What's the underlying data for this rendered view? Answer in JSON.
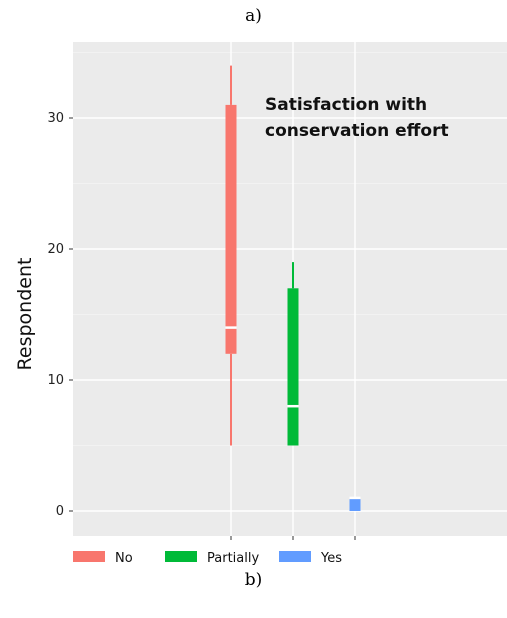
{
  "captions": {
    "top": "a)",
    "bottom": "b)"
  },
  "chart_data": {
    "type": "boxplot",
    "title_lines": [
      "Satisfaction with",
      "conservation effort"
    ],
    "ylabel": "Respondent",
    "xlabel": "",
    "ylim": [
      -1.5,
      36
    ],
    "yticks": [
      0,
      10,
      20,
      30
    ],
    "grid": true,
    "legend_position": "bottom-left",
    "series": [
      {
        "name": "No",
        "color": "#F8766D",
        "min": 5,
        "q1": 12,
        "median": 14,
        "q3": 31,
        "max": 34
      },
      {
        "name": "Partially",
        "color": "#00BA38",
        "min": 5,
        "q1": 5,
        "median": 8,
        "q3": 17,
        "max": 19
      },
      {
        "name": "Yes",
        "color": "#619CFF",
        "min": 0,
        "q1": 0,
        "median": 1,
        "q3": 1,
        "max": 1
      }
    ]
  }
}
